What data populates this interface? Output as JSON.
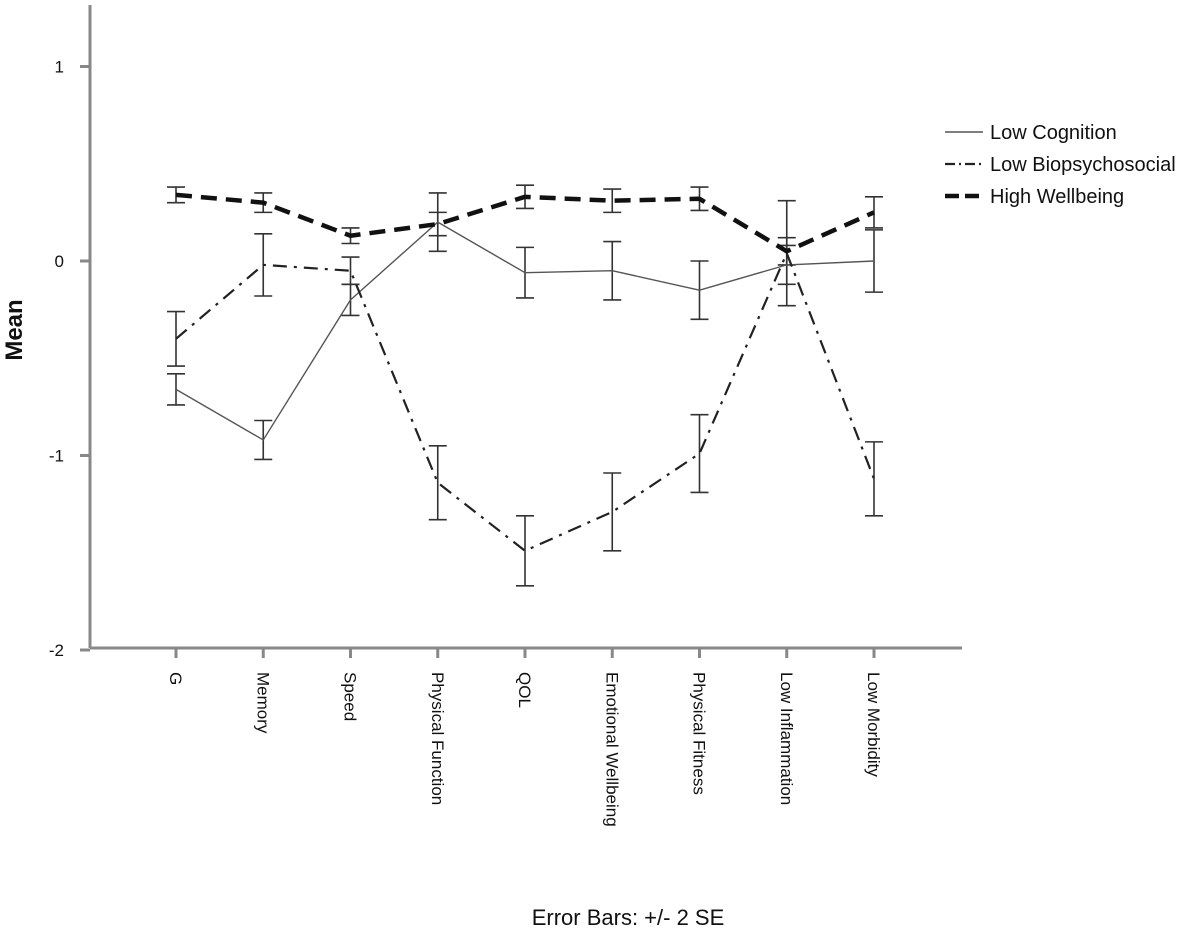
{
  "chart_data": {
    "type": "line",
    "title": "",
    "xlabel": "",
    "ylabel": "Mean",
    "footnote": "Error Bars: +/- 2 SE",
    "ylim": [
      -2,
      1.3
    ],
    "yticks": [
      1,
      0,
      -1,
      -2
    ],
    "ytick_labels": [
      "1",
      "0",
      "-1",
      "-2"
    ],
    "grid": false,
    "legend_position": "top-right",
    "categories": [
      "G",
      "Memory",
      "Speed",
      "Physical Function",
      "QOL",
      "Emotional Wellbeing",
      "Physical Fitness",
      "Low Inflammation",
      "Low Morbidity"
    ],
    "series": [
      {
        "name": "Low Cognition",
        "style": "solid-thin",
        "color": "#555555",
        "values": [
          -0.66,
          -0.92,
          -0.2,
          0.2,
          -0.06,
          -0.05,
          -0.15,
          -0.02,
          0.0
        ],
        "err": [
          0.08,
          0.1,
          0.08,
          0.15,
          0.13,
          0.15,
          0.15,
          0.1,
          0.16
        ]
      },
      {
        "name": "Low Biopsychosocial",
        "style": "dash-dot",
        "color": "#222222",
        "values": [
          -0.4,
          -0.02,
          -0.05,
          -1.14,
          -1.49,
          -1.29,
          -0.99,
          0.04,
          -1.12
        ],
        "err": [
          0.14,
          0.16,
          0.07,
          0.19,
          0.18,
          0.2,
          0.2,
          0.27,
          0.19
        ]
      },
      {
        "name": "High Wellbeing",
        "style": "dashed-bold",
        "color": "#111111",
        "values": [
          0.34,
          0.3,
          0.13,
          0.19,
          0.33,
          0.31,
          0.32,
          0.05,
          0.25
        ],
        "err": [
          0.04,
          0.05,
          0.04,
          0.06,
          0.06,
          0.06,
          0.06,
          0.07,
          0.08
        ]
      }
    ]
  }
}
